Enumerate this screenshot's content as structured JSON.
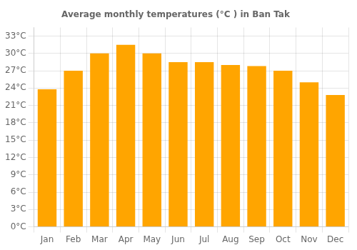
{
  "chart_data": {
    "type": "bar",
    "title": "Average monthly temperatures (°C ) in Ban Tak",
    "categories": [
      "Jan",
      "Feb",
      "Mar",
      "Apr",
      "May",
      "Jun",
      "Jul",
      "Aug",
      "Sep",
      "Oct",
      "Nov",
      "Dec"
    ],
    "values": [
      23.8,
      27.0,
      30.0,
      31.5,
      30.0,
      28.5,
      28.5,
      28.0,
      27.8,
      27.0,
      25.0,
      22.8
    ],
    "color": "#FFA500",
    "ylim": [
      0,
      34.5
    ],
    "yticks": [
      {
        "value": 0,
        "label": "0°C"
      },
      {
        "value": 3,
        "label": "3°C"
      },
      {
        "value": 6,
        "label": "6°C"
      },
      {
        "value": 9,
        "label": "9°C"
      },
      {
        "value": 12,
        "label": "12°C"
      },
      {
        "value": 15,
        "label": "15°C"
      },
      {
        "value": 18,
        "label": "18°C"
      },
      {
        "value": 21,
        "label": "21°C"
      },
      {
        "value": 24,
        "label": "24°C"
      },
      {
        "value": 27,
        "label": "27°C"
      },
      {
        "value": 30,
        "label": "30°C"
      },
      {
        "value": 33,
        "label": "33°C"
      }
    ],
    "grid": true
  }
}
